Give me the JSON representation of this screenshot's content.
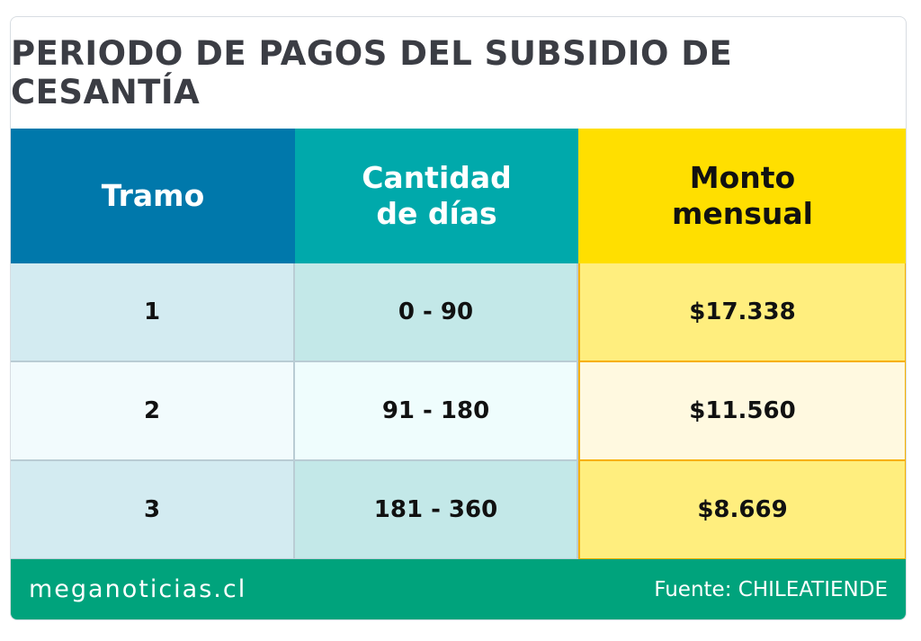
{
  "title": "PERIODO DE PAGOS DEL SUBSIDIO DE CESANTÍA",
  "headers": [
    "Tramo",
    "Cantidad de días",
    "Monto mensual"
  ],
  "rows": [
    {
      "tramo": "1",
      "dias": "0 - 90",
      "monto": "$17.338"
    },
    {
      "tramo": "2",
      "dias": "91 - 180",
      "monto": "$11.560"
    },
    {
      "tramo": "3",
      "dias": "181 - 360",
      "monto": "$8.669"
    }
  ],
  "footer": {
    "brand": "meganoticias.cl",
    "source": "Fuente: CHILEATIENDE"
  },
  "colors": {
    "header_tramo": "#0078ab",
    "header_dias": "#00a9ab",
    "header_monto": "#ffdf00",
    "footer": "#00a37c"
  }
}
